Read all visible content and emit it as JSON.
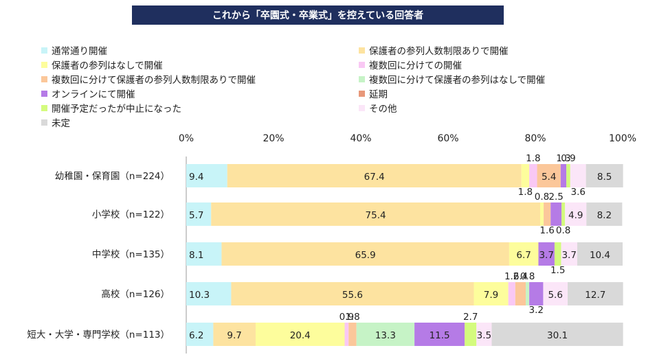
{
  "title": "これから「卒園式・卒業式」を控えている回答者",
  "legend": [
    {
      "label": "通常通り開催",
      "color": "#c8f4f8"
    },
    {
      "label": "保護者の参列人数制限ありで開催",
      "color": "#fde3a0"
    },
    {
      "label": "保護者の参列はなしで開催",
      "color": "#fdfd9c"
    },
    {
      "label": "複数回に分けての開催",
      "color": "#f9c8f4"
    },
    {
      "label": "複数回に分けて保護者の参列人数制限ありで開催",
      "color": "#fbc79a"
    },
    {
      "label": "複数回に分けて保護者の参列はなしで開催",
      "color": "#c6f3c6"
    },
    {
      "label": "オンラインにて開催",
      "color": "#b57be6"
    },
    {
      "label": "延期",
      "color": "#e8987a"
    },
    {
      "label": "開催予定だったが中止になった",
      "color": "#d4fb7e"
    },
    {
      "label": "その他",
      "color": "#fbe6f8"
    },
    {
      "label": "未定",
      "color": "#d9d9d9"
    }
  ],
  "chart_data": {
    "type": "bar",
    "orientation": "horizontal",
    "stacked": true,
    "xlim": [
      0,
      100
    ],
    "x_ticks": [
      "0%",
      "20%",
      "40%",
      "60%",
      "80%",
      "100%"
    ],
    "categories": [
      "幼稚園・保育園（n=224）",
      "小学校（n=122）",
      "中学校（n=135）",
      "高校（n=126）",
      "短大・大学・専門学校（n=113）"
    ],
    "series": [
      {
        "name": "通常通り開催",
        "values": [
          9.4,
          5.7,
          8.1,
          10.3,
          6.2
        ]
      },
      {
        "name": "保護者の参列人数制限ありで開催",
        "values": [
          67.4,
          75.4,
          65.9,
          55.6,
          9.7
        ]
      },
      {
        "name": "保護者の参列はなしで開催",
        "values": [
          1.8,
          0.8,
          6.7,
          7.9,
          20.4
        ]
      },
      {
        "name": "複数回に分けての開催",
        "values": [
          1.8,
          0.0,
          0.0,
          1.6,
          0.9
        ]
      },
      {
        "name": "複数回に分けて保護者の参列人数制限ありで開催",
        "values": [
          5.4,
          1.6,
          0.0,
          2.4,
          1.8
        ]
      },
      {
        "name": "複数回に分けて保護者の参列はなしで開催",
        "values": [
          0.0,
          0.0,
          0.0,
          0.8,
          13.3
        ]
      },
      {
        "name": "オンラインにて開催",
        "values": [
          1.3,
          2.5,
          3.7,
          3.2,
          11.5
        ]
      },
      {
        "name": "延期",
        "values": [
          0.0,
          0.0,
          0.0,
          0.0,
          0.0
        ]
      },
      {
        "name": "開催予定だったが中止になった",
        "values": [
          0.9,
          0.8,
          1.5,
          0.0,
          2.7
        ]
      },
      {
        "name": "その他",
        "values": [
          3.6,
          4.9,
          3.7,
          5.6,
          3.5
        ]
      },
      {
        "name": "未定",
        "values": [
          8.5,
          8.2,
          10.4,
          12.7,
          30.1
        ]
      }
    ]
  }
}
